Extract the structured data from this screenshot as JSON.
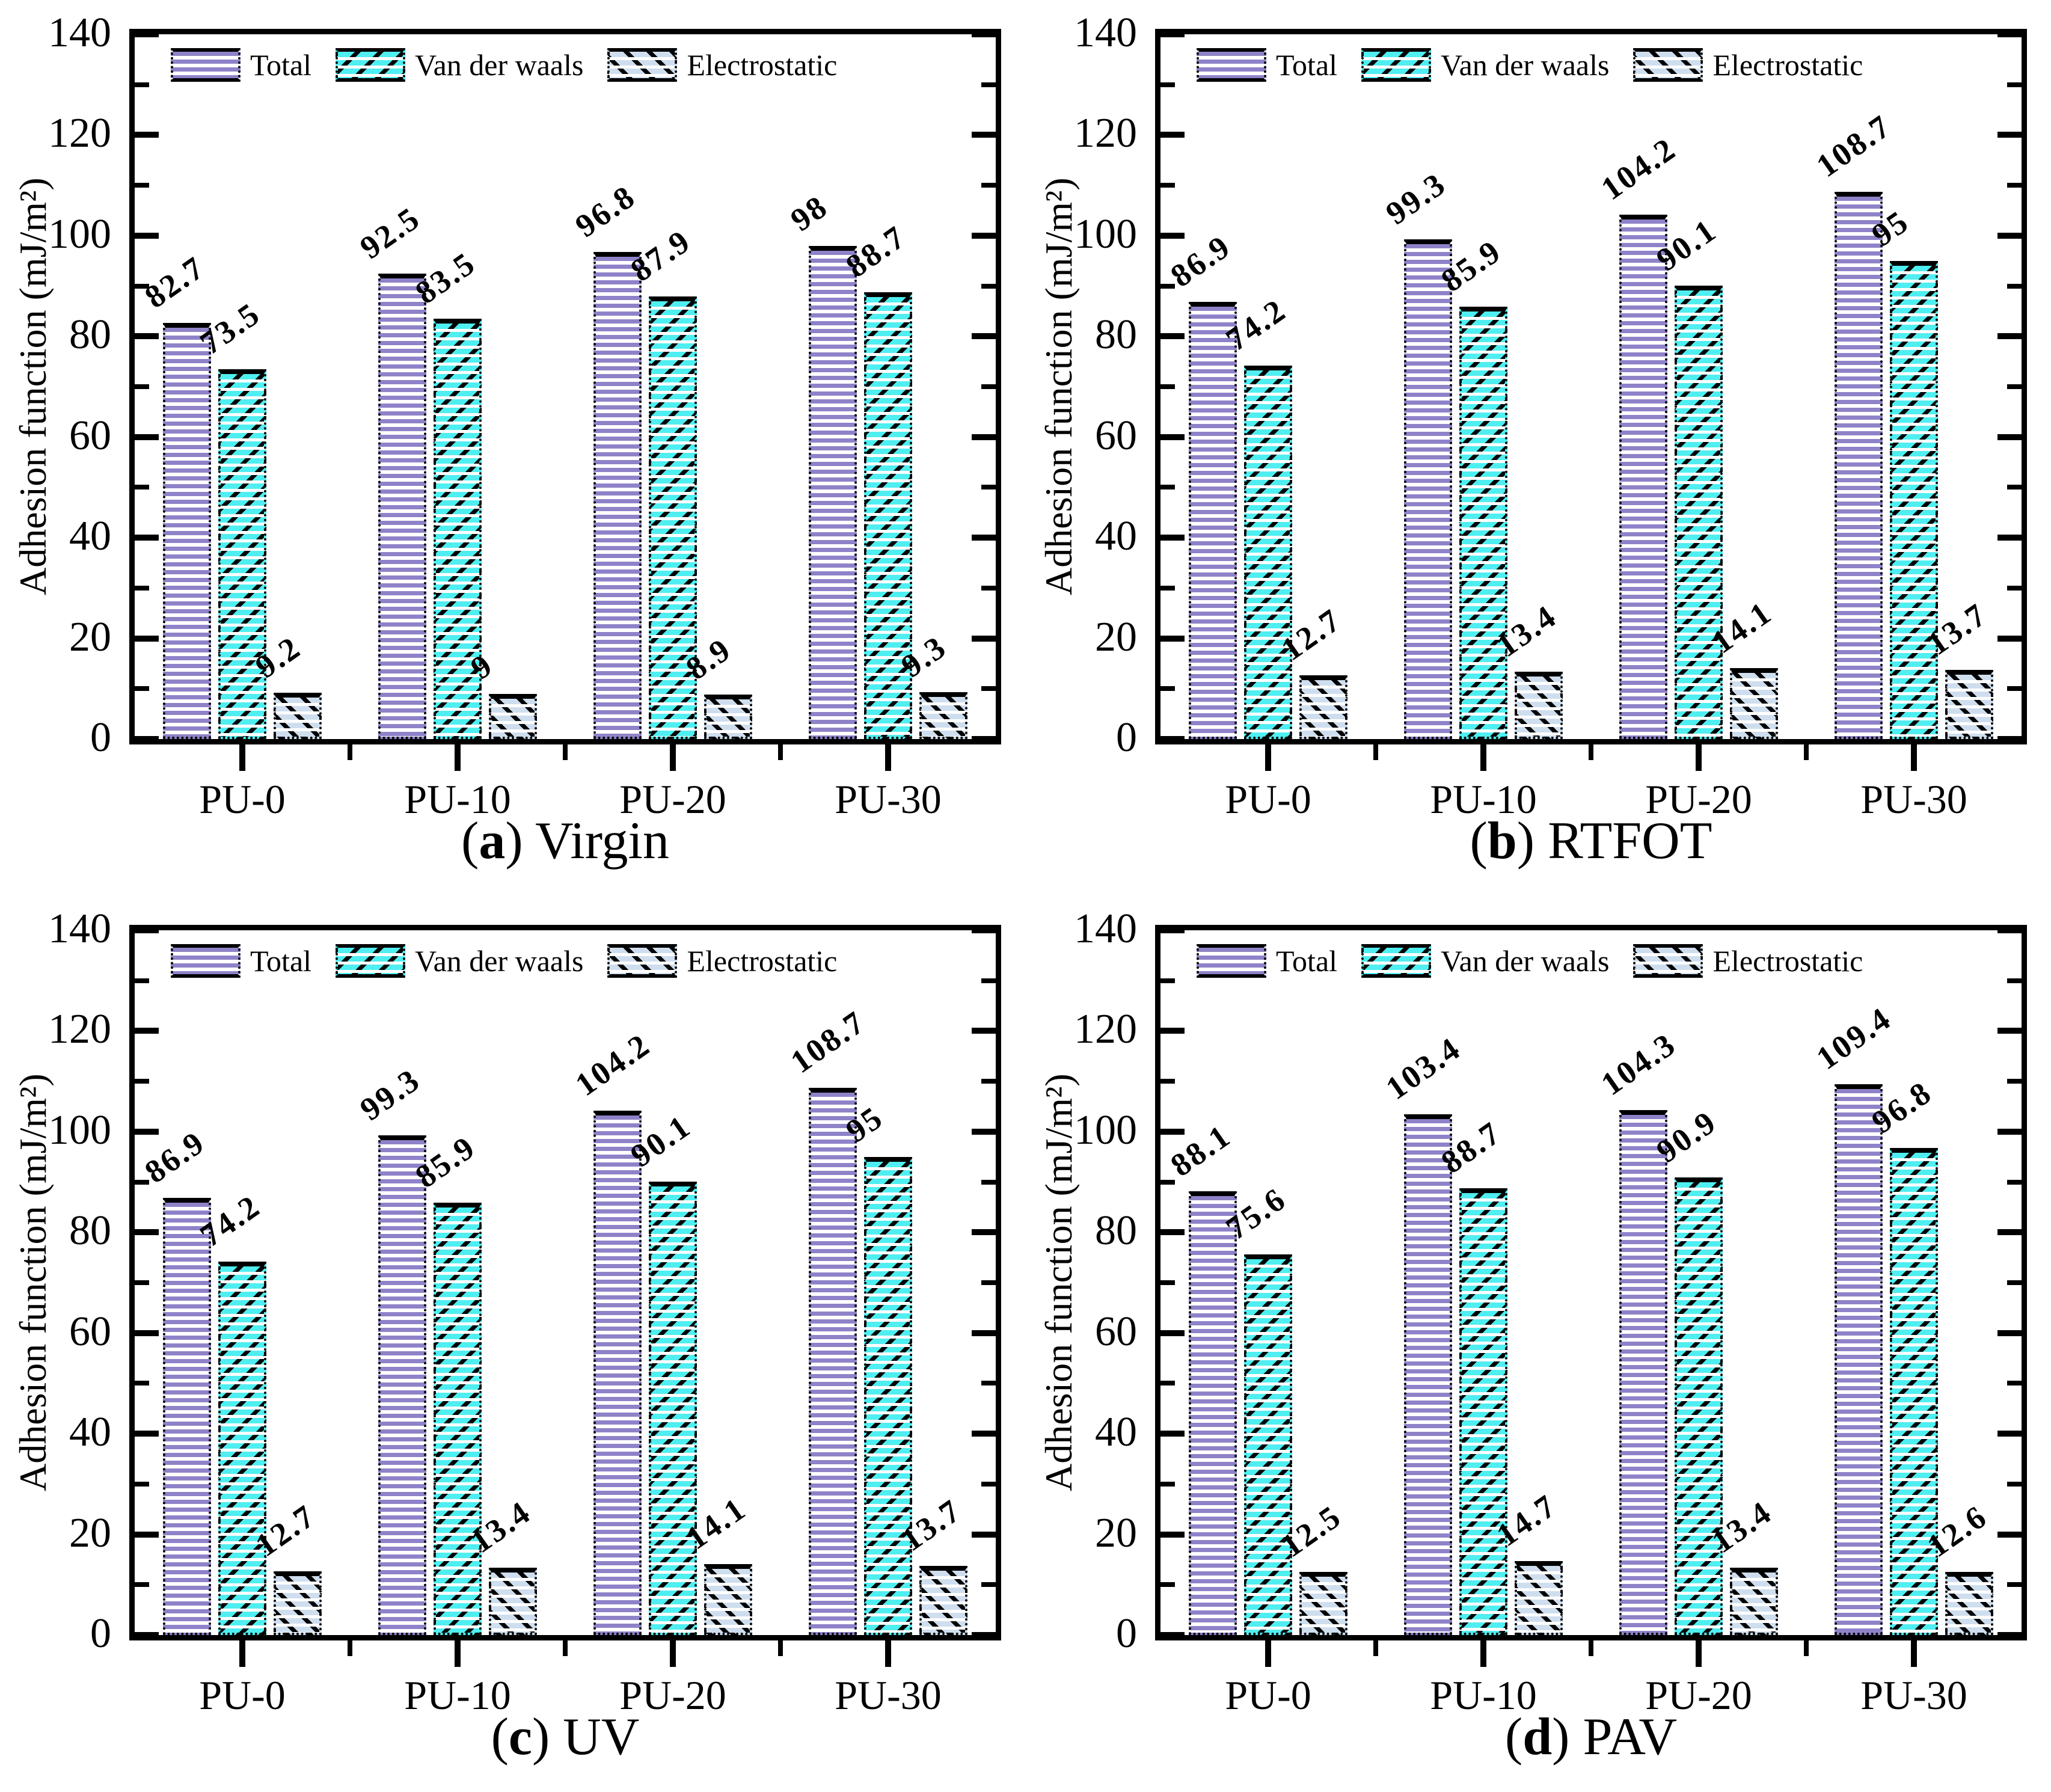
{
  "figure": {
    "caption_open": "(",
    "caption_close": ") "
  },
  "colors": {
    "total": "#8f82c8",
    "vdw": "#4feef0",
    "elec": "#cfdeee",
    "axis": "#000000"
  },
  "chart_data": [
    {
      "type": "bar",
      "letter": "a",
      "title": "Virgin",
      "ylabel": "Adhesion function (mJ/m²)",
      "ylim": [
        0,
        140
      ],
      "yticks": [
        0,
        20,
        40,
        60,
        80,
        100,
        120,
        140
      ],
      "grid": false,
      "legend_position": "top-left-inside",
      "categories": [
        "PU-0",
        "PU-10",
        "PU-20",
        "PU-30"
      ],
      "series": [
        {
          "name": "Total",
          "values": [
            82.7,
            92.5,
            96.8,
            98
          ]
        },
        {
          "name": "Van der waals",
          "values": [
            73.5,
            83.5,
            87.9,
            88.7
          ]
        },
        {
          "name": "Electrostatic",
          "values": [
            9.2,
            9,
            8.9,
            9.3
          ]
        }
      ]
    },
    {
      "type": "bar",
      "letter": "b",
      "title": "RTFOT",
      "ylabel": "Adhesion function (mJ/m²)",
      "ylim": [
        0,
        140
      ],
      "yticks": [
        0,
        20,
        40,
        60,
        80,
        100,
        120,
        140
      ],
      "grid": false,
      "legend_position": "top-left-inside",
      "categories": [
        "PU-0",
        "PU-10",
        "PU-20",
        "PU-30"
      ],
      "series": [
        {
          "name": "Total",
          "values": [
            86.9,
            99.3,
            104.2,
            108.7
          ]
        },
        {
          "name": "Van der waals",
          "values": [
            74.2,
            85.9,
            90.1,
            95
          ]
        },
        {
          "name": "Electrostatic",
          "values": [
            12.7,
            13.4,
            14.1,
            13.7
          ]
        }
      ]
    },
    {
      "type": "bar",
      "letter": "c",
      "title": "UV",
      "ylabel": "Adhesion function (mJ/m²)",
      "ylim": [
        0,
        140
      ],
      "yticks": [
        0,
        20,
        40,
        60,
        80,
        100,
        120,
        140
      ],
      "grid": false,
      "legend_position": "top-left-inside",
      "categories": [
        "PU-0",
        "PU-10",
        "PU-20",
        "PU-30"
      ],
      "series": [
        {
          "name": "Total",
          "values": [
            86.9,
            99.3,
            104.2,
            108.7
          ]
        },
        {
          "name": "Van der waals",
          "values": [
            74.2,
            85.9,
            90.1,
            95
          ]
        },
        {
          "name": "Electrostatic",
          "values": [
            12.7,
            13.4,
            14.1,
            13.7
          ]
        }
      ]
    },
    {
      "type": "bar",
      "letter": "d",
      "title": "PAV",
      "ylabel": "Adhesion function (mJ/m²)",
      "ylim": [
        0,
        140
      ],
      "yticks": [
        0,
        20,
        40,
        60,
        80,
        100,
        120,
        140
      ],
      "grid": false,
      "legend_position": "top-left-inside",
      "categories": [
        "PU-0",
        "PU-10",
        "PU-20",
        "PU-30"
      ],
      "series": [
        {
          "name": "Total",
          "values": [
            88.1,
            103.4,
            104.3,
            109.4
          ]
        },
        {
          "name": "Van der waals",
          "values": [
            75.6,
            88.7,
            90.9,
            96.8
          ]
        },
        {
          "name": "Electrostatic",
          "values": [
            12.5,
            14.7,
            13.4,
            12.6
          ]
        }
      ]
    }
  ]
}
